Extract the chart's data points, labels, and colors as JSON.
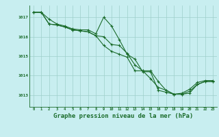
{
  "background_color": "#c8eef0",
  "grid_color": "#9ecfca",
  "line_color": "#1a6b2a",
  "marker_color": "#1a6b2a",
  "xlabel": "Graphe pression niveau de la mer (hPa)",
  "xlabel_fontsize": 6.5,
  "ylabel_ticks": [
    1013,
    1014,
    1015,
    1016,
    1017
  ],
  "xlim": [
    -0.5,
    23.5
  ],
  "ylim": [
    1012.4,
    1017.6
  ],
  "series1": [
    1017.25,
    1017.25,
    1016.9,
    1016.65,
    1016.55,
    1016.4,
    1016.35,
    1016.35,
    1016.15,
    1017.0,
    1016.55,
    1015.85,
    1015.1,
    1014.85,
    1014.2,
    1014.2,
    1013.25,
    1013.15,
    1013.05,
    1013.1,
    1013.3,
    1013.65,
    1013.75,
    1013.75
  ],
  "series2": [
    1017.25,
    1017.25,
    1016.65,
    1016.6,
    1016.5,
    1016.35,
    1016.3,
    1016.25,
    1016.05,
    1016.0,
    1015.6,
    1015.55,
    1015.15,
    1014.55,
    1014.25,
    1014.25,
    1013.7,
    1013.25,
    1013.05,
    1013.05,
    1013.2,
    1013.55,
    1013.7,
    1013.7
  ],
  "series3": [
    1017.25,
    1017.25,
    1016.65,
    1016.6,
    1016.5,
    1016.35,
    1016.3,
    1016.25,
    1016.05,
    1015.55,
    1015.25,
    1015.1,
    1014.95,
    1014.25,
    1014.25,
    1013.85,
    1013.4,
    1013.25,
    1013.05,
    1013.05,
    1013.1,
    1013.55,
    1013.7,
    1013.7
  ]
}
